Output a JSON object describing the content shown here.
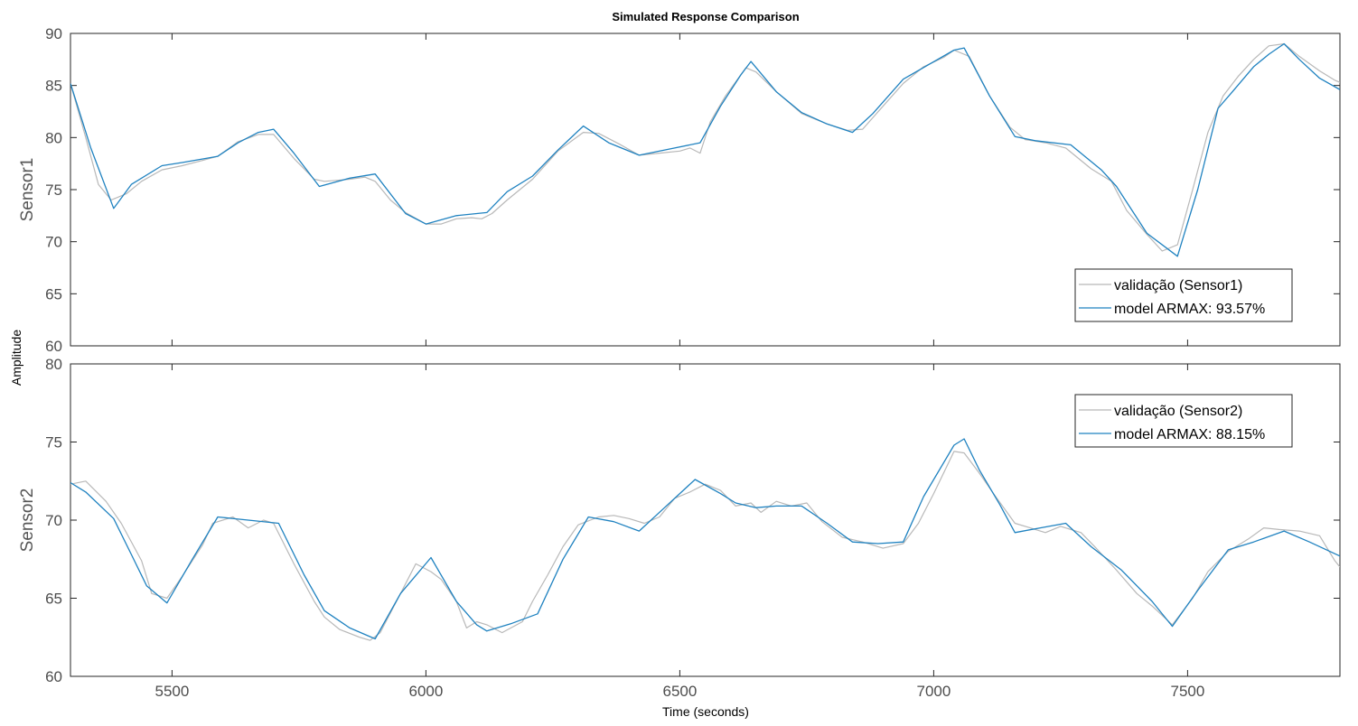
{
  "title": "Simulated Response Comparison",
  "xlabel": "Time (seconds)",
  "ylabel": "Amplitude",
  "colors": {
    "validation": "#b8b8b8",
    "model": "#1f82c0",
    "axes": "#262626"
  },
  "chart_data": [
    {
      "type": "line",
      "name": "Sensor1",
      "ylabel": "Sensor1",
      "xlim": [
        5300,
        7800
      ],
      "ylim": [
        60,
        90
      ],
      "xticks": [
        5500,
        6000,
        6500,
        7000,
        7500
      ],
      "yticks": [
        60,
        65,
        70,
        75,
        80,
        85,
        90
      ],
      "legend": "bottom-right",
      "series": [
        {
          "name": "validação (Sensor1)",
          "role": "validation",
          "points": [
            [
              5300,
              85.2
            ],
            [
              5330,
              80
            ],
            [
              5355,
              75.5
            ],
            [
              5380,
              74
            ],
            [
              5410,
              74.6
            ],
            [
              5440,
              75.8
            ],
            [
              5480,
              76.9
            ],
            [
              5520,
              77.3
            ],
            [
              5560,
              77.8
            ],
            [
              5590,
              78.2
            ],
            [
              5630,
              79.6
            ],
            [
              5670,
              80.3
            ],
            [
              5700,
              80.3
            ],
            [
              5740,
              78
            ],
            [
              5780,
              76
            ],
            [
              5800,
              75.8
            ],
            [
              5850,
              76
            ],
            [
              5880,
              76.2
            ],
            [
              5900,
              75.8
            ],
            [
              5930,
              74
            ],
            [
              5960,
              72.8
            ],
            [
              6000,
              71.7
            ],
            [
              6030,
              71.7
            ],
            [
              6060,
              72.2
            ],
            [
              6090,
              72.3
            ],
            [
              6110,
              72.2
            ],
            [
              6130,
              72.7
            ],
            [
              6160,
              74
            ],
            [
              6210,
              76
            ],
            [
              6260,
              78.7
            ],
            [
              6310,
              80.5
            ],
            [
              6340,
              80.4
            ],
            [
              6380,
              79.4
            ],
            [
              6420,
              78.3
            ],
            [
              6460,
              78.5
            ],
            [
              6500,
              78.7
            ],
            [
              6520,
              79
            ],
            [
              6540,
              78.5
            ],
            [
              6560,
              81.5
            ],
            [
              6590,
              84
            ],
            [
              6630,
              86.7
            ],
            [
              6650,
              86.3
            ],
            [
              6690,
              84.4
            ],
            [
              6740,
              82.3
            ],
            [
              6790,
              81.3
            ],
            [
              6830,
              80.7
            ],
            [
              6860,
              80.8
            ],
            [
              6900,
              83
            ],
            [
              6940,
              85.2
            ],
            [
              6980,
              86.8
            ],
            [
              7020,
              87.7
            ],
            [
              7040,
              88.4
            ],
            [
              7070,
              87.8
            ],
            [
              7110,
              84
            ],
            [
              7150,
              81
            ],
            [
              7180,
              79.8
            ],
            [
              7220,
              79.5
            ],
            [
              7260,
              79
            ],
            [
              7310,
              77
            ],
            [
              7350,
              75.8
            ],
            [
              7380,
              73
            ],
            [
              7420,
              70.7
            ],
            [
              7450,
              69.1
            ],
            [
              7480,
              69.7
            ],
            [
              7510,
              75
            ],
            [
              7540,
              80.5
            ],
            [
              7570,
              84
            ],
            [
              7600,
              85.9
            ],
            [
              7630,
              87.5
            ],
            [
              7660,
              88.8
            ],
            [
              7690,
              89
            ],
            [
              7720,
              87.8
            ],
            [
              7760,
              86.4
            ],
            [
              7790,
              85.5
            ],
            [
              7800,
              85.3
            ]
          ]
        },
        {
          "name": "model ARMAX: 93.57%",
          "role": "model",
          "points": [
            [
              5300,
              85.2
            ],
            [
              5340,
              79
            ],
            [
              5385,
              73.2
            ],
            [
              5420,
              75.5
            ],
            [
              5480,
              77.3
            ],
            [
              5520,
              77.6
            ],
            [
              5590,
              78.2
            ],
            [
              5630,
              79.5
            ],
            [
              5670,
              80.5
            ],
            [
              5700,
              80.8
            ],
            [
              5740,
              78.5
            ],
            [
              5790,
              75.3
            ],
            [
              5850,
              76.1
            ],
            [
              5900,
              76.5
            ],
            [
              5960,
              72.7
            ],
            [
              6000,
              71.7
            ],
            [
              6060,
              72.5
            ],
            [
              6120,
              72.8
            ],
            [
              6160,
              74.8
            ],
            [
              6210,
              76.3
            ],
            [
              6260,
              78.8
            ],
            [
              6310,
              81.1
            ],
            [
              6360,
              79.5
            ],
            [
              6420,
              78.3
            ],
            [
              6480,
              78.9
            ],
            [
              6540,
              79.5
            ],
            [
              6580,
              83
            ],
            [
              6620,
              86
            ],
            [
              6640,
              87.3
            ],
            [
              6690,
              84.4
            ],
            [
              6740,
              82.4
            ],
            [
              6790,
              81.3
            ],
            [
              6840,
              80.5
            ],
            [
              6880,
              82.3
            ],
            [
              6940,
              85.6
            ],
            [
              6990,
              87
            ],
            [
              7040,
              88.4
            ],
            [
              7060,
              88.6
            ],
            [
              7110,
              84
            ],
            [
              7160,
              80.1
            ],
            [
              7200,
              79.7
            ],
            [
              7270,
              79.3
            ],
            [
              7330,
              76.9
            ],
            [
              7360,
              75.3
            ],
            [
              7420,
              70.8
            ],
            [
              7480,
              68.6
            ],
            [
              7520,
              75
            ],
            [
              7560,
              82.8
            ],
            [
              7590,
              84.5
            ],
            [
              7630,
              86.8
            ],
            [
              7660,
              88
            ],
            [
              7690,
              89
            ],
            [
              7720,
              87.5
            ],
            [
              7760,
              85.7
            ],
            [
              7800,
              84.6
            ]
          ]
        }
      ]
    },
    {
      "type": "line",
      "name": "Sensor2",
      "ylabel": "Sensor2",
      "xlim": [
        5300,
        7800
      ],
      "ylim": [
        60,
        80
      ],
      "xticks": [
        5500,
        6000,
        6500,
        7000,
        7500
      ],
      "yticks": [
        60,
        65,
        70,
        75,
        80
      ],
      "legend": "top-right",
      "series": [
        {
          "name": "validação (Sensor2)",
          "role": "validation",
          "points": [
            [
              5300,
              72.3
            ],
            [
              5330,
              72.5
            ],
            [
              5370,
              71.2
            ],
            [
              5400,
              69.8
            ],
            [
              5440,
              67.4
            ],
            [
              5460,
              65.3
            ],
            [
              5490,
              65
            ],
            [
              5520,
              66.4
            ],
            [
              5560,
              68.4
            ],
            [
              5580,
              69.8
            ],
            [
              5620,
              70.2
            ],
            [
              5650,
              69.5
            ],
            [
              5680,
              70
            ],
            [
              5700,
              69.8
            ],
            [
              5740,
              67.2
            ],
            [
              5780,
              64.8
            ],
            [
              5800,
              63.8
            ],
            [
              5830,
              63
            ],
            [
              5870,
              62.5
            ],
            [
              5890,
              62.3
            ],
            [
              5910,
              62.8
            ],
            [
              5950,
              65.3
            ],
            [
              5980,
              67.2
            ],
            [
              6010,
              66.7
            ],
            [
              6030,
              66.2
            ],
            [
              6060,
              64.8
            ],
            [
              6080,
              63.1
            ],
            [
              6100,
              63.5
            ],
            [
              6120,
              63.3
            ],
            [
              6150,
              62.8
            ],
            [
              6190,
              63.5
            ],
            [
              6210,
              64.8
            ],
            [
              6240,
              66.5
            ],
            [
              6270,
              68.3
            ],
            [
              6300,
              69.7
            ],
            [
              6340,
              70.2
            ],
            [
              6370,
              70.3
            ],
            [
              6400,
              70.1
            ],
            [
              6430,
              69.8
            ],
            [
              6460,
              70.2
            ],
            [
              6490,
              71.4
            ],
            [
              6520,
              71.8
            ],
            [
              6550,
              72.3
            ],
            [
              6580,
              71.9
            ],
            [
              6610,
              70.9
            ],
            [
              6640,
              71.1
            ],
            [
              6660,
              70.5
            ],
            [
              6690,
              71.2
            ],
            [
              6720,
              70.9
            ],
            [
              6750,
              71.1
            ],
            [
              6780,
              69.9
            ],
            [
              6820,
              68.9
            ],
            [
              6860,
              68.6
            ],
            [
              6900,
              68.2
            ],
            [
              6940,
              68.5
            ],
            [
              6970,
              69.8
            ],
            [
              7000,
              71.7
            ],
            [
              7040,
              74.4
            ],
            [
              7060,
              74.3
            ],
            [
              7090,
              73
            ],
            [
              7120,
              71.6
            ],
            [
              7160,
              69.8
            ],
            [
              7190,
              69.5
            ],
            [
              7220,
              69.2
            ],
            [
              7250,
              69.6
            ],
            [
              7290,
              69.2
            ],
            [
              7320,
              68.2
            ],
            [
              7360,
              66.8
            ],
            [
              7400,
              65.3
            ],
            [
              7430,
              64.5
            ],
            [
              7470,
              63.3
            ],
            [
              7510,
              65
            ],
            [
              7540,
              66.7
            ],
            [
              7580,
              68
            ],
            [
              7620,
              68.8
            ],
            [
              7650,
              69.5
            ],
            [
              7680,
              69.4
            ],
            [
              7720,
              69.3
            ],
            [
              7760,
              69
            ],
            [
              7790,
              67.4
            ],
            [
              7800,
              67
            ]
          ]
        },
        {
          "name": "model ARMAX: 88.15%",
          "role": "model",
          "points": [
            [
              5300,
              72.4
            ],
            [
              5330,
              71.8
            ],
            [
              5385,
              70.1
            ],
            [
              5420,
              67.8
            ],
            [
              5450,
              65.8
            ],
            [
              5490,
              64.7
            ],
            [
              5540,
              67.5
            ],
            [
              5590,
              70.2
            ],
            [
              5650,
              70
            ],
            [
              5710,
              69.8
            ],
            [
              5760,
              66.5
            ],
            [
              5800,
              64.2
            ],
            [
              5850,
              63.1
            ],
            [
              5900,
              62.4
            ],
            [
              5950,
              65.3
            ],
            [
              6010,
              67.6
            ],
            [
              6060,
              64.8
            ],
            [
              6100,
              63.3
            ],
            [
              6120,
              62.9
            ],
            [
              6170,
              63.4
            ],
            [
              6220,
              64
            ],
            [
              6270,
              67.5
            ],
            [
              6320,
              70.2
            ],
            [
              6370,
              69.9
            ],
            [
              6420,
              69.3
            ],
            [
              6470,
              70.8
            ],
            [
              6530,
              72.6
            ],
            [
              6580,
              71.7
            ],
            [
              6610,
              71.1
            ],
            [
              6650,
              70.8
            ],
            [
              6690,
              70.9
            ],
            [
              6740,
              70.9
            ],
            [
              6790,
              69.8
            ],
            [
              6840,
              68.6
            ],
            [
              6890,
              68.5
            ],
            [
              6940,
              68.6
            ],
            [
              6980,
              71.5
            ],
            [
              7040,
              74.8
            ],
            [
              7060,
              75.2
            ],
            [
              7090,
              73.2
            ],
            [
              7130,
              71
            ],
            [
              7160,
              69.2
            ],
            [
              7210,
              69.5
            ],
            [
              7260,
              69.8
            ],
            [
              7310,
              68.3
            ],
            [
              7370,
              66.8
            ],
            [
              7430,
              64.8
            ],
            [
              7470,
              63.2
            ],
            [
              7520,
              65.5
            ],
            [
              7580,
              68.1
            ],
            [
              7630,
              68.6
            ],
            [
              7690,
              69.3
            ],
            [
              7740,
              68.6
            ],
            [
              7800,
              67.7
            ]
          ]
        }
      ]
    }
  ]
}
